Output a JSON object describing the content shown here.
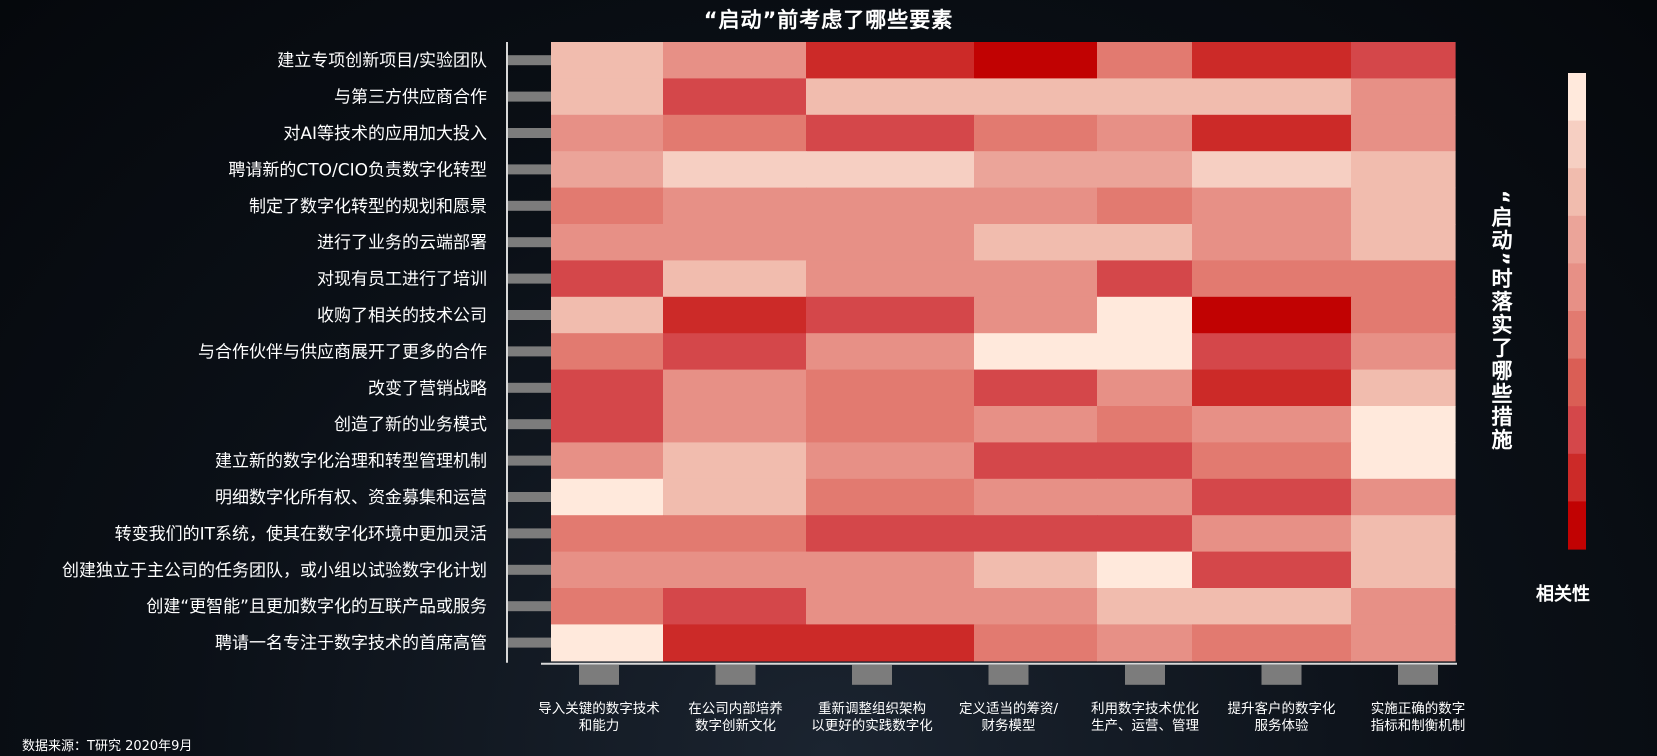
{
  "chart_data": {
    "type": "heatmap",
    "title": "“启动”前考虑了哪些要素",
    "side_label": "“启动”时落实了哪些措施",
    "legend_title": "相关性",
    "source": "数据来源：T研究  2020年9月",
    "colors": [
      "#ffe9dc",
      "#f6cfc2",
      "#f1bcae",
      "#eba499",
      "#e79086",
      "#e27a70",
      "#da5e55",
      "#d4474a",
      "#cc2a28",
      "#c10202"
    ],
    "rows": [
      "建立专项创新项目/实验团队",
      "与第三方供应商合作",
      "对AI等技术的应用加大投入",
      "聘请新的CTO/CIO负责数字化转型",
      "制定了数字化转型的规划和愿景",
      "进行了业务的云端部署",
      "对现有员工进行了培训",
      "收购了相关的技术公司",
      "与合作伙伴与供应商展开了更多的合作",
      "改变了营销战略",
      "创造了新的业务模式",
      "建立新的数字化治理和转型管理机制",
      "明细数字化所有权、资金募集和运营",
      "转变我们的IT系统，使其在数字化环境中更加灵活",
      "创建独立于主公司的任务团队，或小组以试验数字化计划",
      "创建“更智能”且更加数字化的互联产品或服务",
      "聘请一名专注于数字技术的首席高管"
    ],
    "columns": [
      [
        "导入关键的数字技术",
        "和能力"
      ],
      [
        "在公司内部培养",
        "数字创新文化"
      ],
      [
        "重新调整组织架构",
        "以更好的实践数字化"
      ],
      [
        "定义适当的筹资/",
        "财务模型"
      ],
      [
        "利用数字技术优化",
        "生产、运营、管理"
      ],
      [
        "提升客户的数字化",
        "服务体验"
      ],
      [
        "实施正确的数字",
        "指标和制衡机制"
      ]
    ],
    "values": [
      [
        2,
        4,
        8,
        9,
        5,
        8,
        7
      ],
      [
        2,
        7,
        2,
        2,
        2,
        2,
        4
      ],
      [
        4,
        5,
        7,
        5,
        4,
        8,
        4
      ],
      [
        3,
        1,
        1,
        3,
        3,
        1,
        2
      ],
      [
        5,
        4,
        4,
        4,
        5,
        4,
        2
      ],
      [
        4,
        4,
        4,
        2,
        2,
        4,
        2
      ],
      [
        7,
        2,
        4,
        4,
        7,
        5,
        5
      ],
      [
        2,
        8,
        7,
        4,
        0,
        9,
        5
      ],
      [
        5,
        7,
        4,
        0,
        0,
        7,
        4
      ],
      [
        7,
        4,
        5,
        7,
        4,
        8,
        2
      ],
      [
        7,
        4,
        5,
        4,
        5,
        4,
        0
      ],
      [
        4,
        2,
        4,
        7,
        7,
        5,
        0
      ],
      [
        0,
        2,
        5,
        4,
        4,
        7,
        4
      ],
      [
        5,
        5,
        7,
        7,
        7,
        4,
        2
      ],
      [
        4,
        4,
        4,
        2,
        0,
        7,
        2
      ],
      [
        5,
        7,
        4,
        4,
        2,
        2,
        4
      ],
      [
        0,
        8,
        8,
        5,
        4,
        5,
        4
      ]
    ]
  }
}
